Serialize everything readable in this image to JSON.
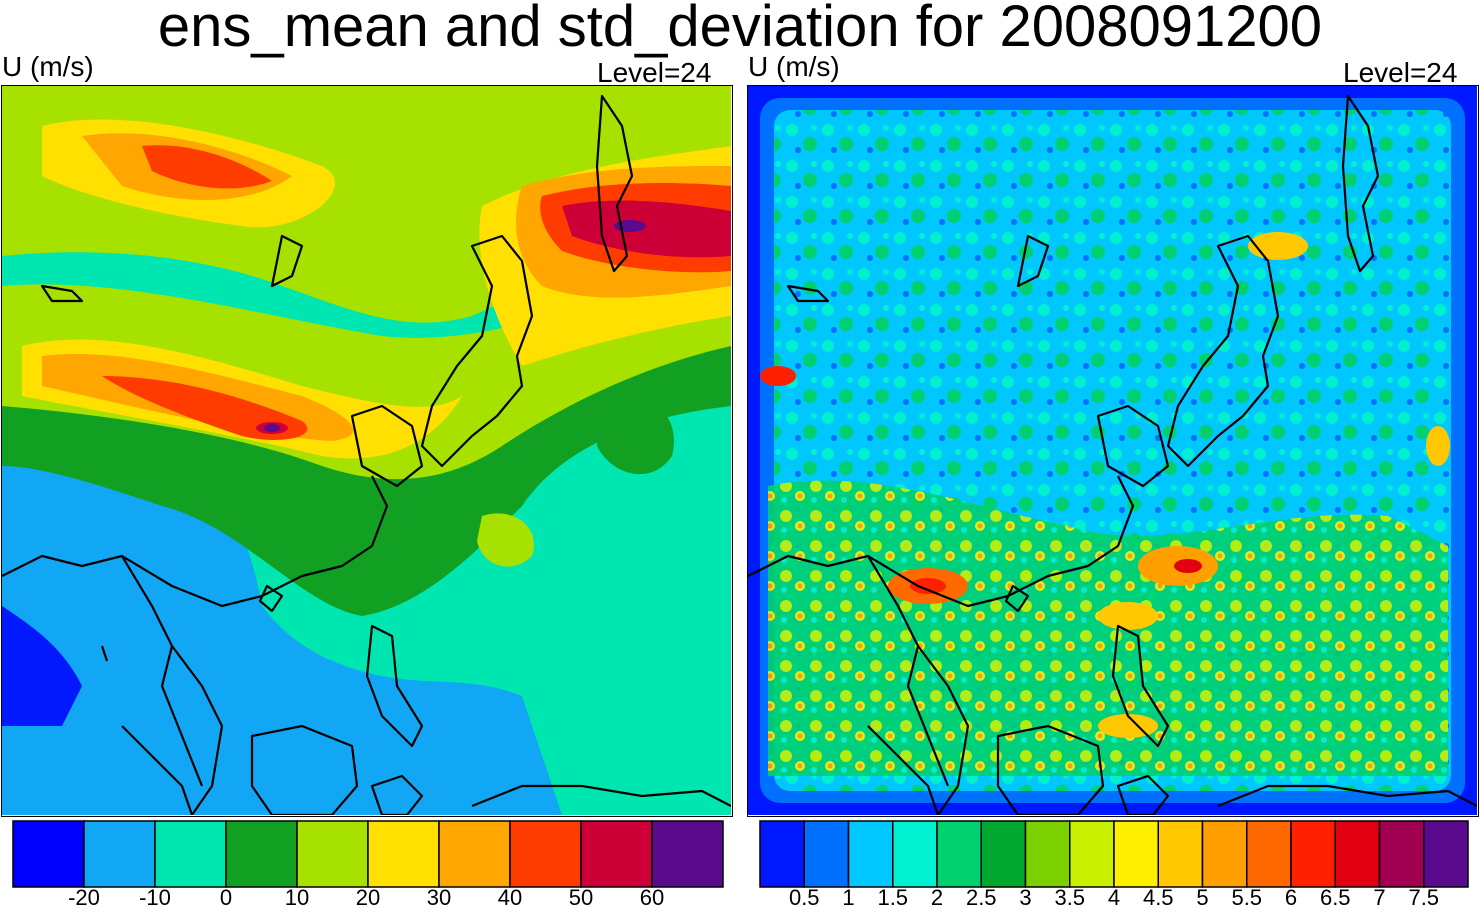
{
  "title": "ens_mean and std_deviation for 2008091200",
  "panels": [
    {
      "variable_label": "U (m/s)",
      "level_label": "Level=24",
      "colorbar": {
        "colors": [
          "#0000ff",
          "#12a7f5",
          "#00e6b0",
          "#12a022",
          "#a6e100",
          "#ffe000",
          "#ffa600",
          "#ff3c00",
          "#cc0036",
          "#5a0a8c"
        ],
        "tick_labels": [
          "-20",
          "-10",
          "0",
          "10",
          "20",
          "30",
          "40",
          "50",
          "60"
        ]
      }
    },
    {
      "variable_label": "U (m/s)",
      "level_label": "Level=24",
      "colorbar": {
        "colors": [
          "#0018ff",
          "#0070ff",
          "#00c8ff",
          "#00f0d0",
          "#00d070",
          "#00a830",
          "#7ad000",
          "#c8f000",
          "#fff000",
          "#ffc800",
          "#ffa000",
          "#ff6a00",
          "#ff2000",
          "#e00010",
          "#a00050",
          "#5a0a8c"
        ],
        "tick_labels": [
          "0.5",
          "1",
          "1.5",
          "2",
          "2.5",
          "3",
          "3.5",
          "4",
          "4.5",
          "5",
          "5.5",
          "6",
          "6.5",
          "7",
          "7.5"
        ]
      }
    }
  ]
}
